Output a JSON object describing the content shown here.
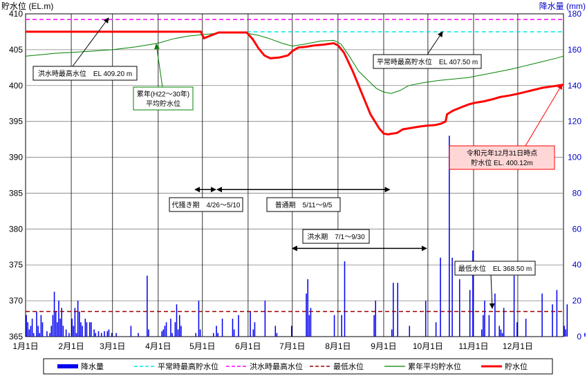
{
  "chart_data": {
    "type": "bar+line",
    "ylabel_left": "貯水位 (EL.m)",
    "ylabel_right": "降水量 (mm)",
    "y_left_range": [
      365,
      410
    ],
    "y_left_ticks": [
      365,
      370,
      375,
      380,
      385,
      390,
      395,
      400,
      405,
      410
    ],
    "y_right_range": [
      0,
      180
    ],
    "y_right_ticks": [
      0,
      20,
      40,
      60,
      80,
      100,
      120,
      140,
      160,
      180
    ],
    "x_range_days": [
      0,
      365
    ],
    "months": [
      "1月1日",
      "2月1日",
      "3月1日",
      "4月1日",
      "5月1日",
      "6月1日",
      "7月1日",
      "8月1日",
      "9月1日",
      "10月1日",
      "11月1日",
      "12月1日"
    ],
    "month_days": [
      0,
      31,
      59,
      90,
      120,
      151,
      181,
      212,
      243,
      273,
      304,
      334
    ],
    "colors": {
      "rain": "#0000ee",
      "normal_max": "#00e5e5",
      "flood_max": "#ff00ff",
      "min_level": "#990000",
      "avg_level": "#008000",
      "level": "#ff0000"
    },
    "reference_lines": {
      "flood_max": 409.2,
      "normal_max": 407.5,
      "min_level": 368.5
    },
    "series": [
      {
        "key": "level",
        "name": "貯水位",
        "points": [
          [
            0,
            407.5
          ],
          [
            119,
            407.5
          ],
          [
            120,
            407.0
          ],
          [
            121,
            406.6
          ],
          [
            126,
            407.0
          ],
          [
            131,
            407.4
          ],
          [
            150,
            407.4
          ],
          [
            154,
            406.5
          ],
          [
            158,
            405.2
          ],
          [
            162,
            404.2
          ],
          [
            166,
            403.8
          ],
          [
            172,
            403.9
          ],
          [
            178,
            404.2
          ],
          [
            181,
            404.8
          ],
          [
            185,
            405.3
          ],
          [
            190,
            405.4
          ],
          [
            196,
            405.6
          ],
          [
            202,
            405.7
          ],
          [
            209,
            405.9
          ],
          [
            212,
            405.6
          ],
          [
            216,
            404.6
          ],
          [
            222,
            402.0
          ],
          [
            228,
            399.0
          ],
          [
            234,
            396.0
          ],
          [
            240,
            394.0
          ],
          [
            243,
            393.3
          ],
          [
            246,
            393.2
          ],
          [
            252,
            393.4
          ],
          [
            256,
            393.9
          ],
          [
            262,
            394.1
          ],
          [
            268,
            394.3
          ],
          [
            272,
            394.4
          ],
          [
            278,
            394.5
          ],
          [
            282,
            394.7
          ],
          [
            285,
            395.0
          ],
          [
            286,
            396.0
          ],
          [
            290,
            396.5
          ],
          [
            296,
            397.0
          ],
          [
            301,
            397.4
          ],
          [
            305,
            397.6
          ],
          [
            311,
            397.8
          ],
          [
            317,
            398.1
          ],
          [
            322,
            398.4
          ],
          [
            328,
            398.6
          ],
          [
            335,
            398.9
          ],
          [
            343,
            399.3
          ],
          [
            351,
            399.7
          ],
          [
            358,
            399.9
          ],
          [
            365,
            400.12
          ]
        ]
      },
      {
        "key": "avg_level",
        "name": "累年平均貯水位",
        "points": [
          [
            0,
            404.1
          ],
          [
            10,
            404.3
          ],
          [
            20,
            404.5
          ],
          [
            30,
            404.6
          ],
          [
            45,
            404.8
          ],
          [
            59,
            405.0
          ],
          [
            75,
            405.4
          ],
          [
            90,
            405.9
          ],
          [
            100,
            406.5
          ],
          [
            110,
            406.9
          ],
          [
            120,
            407.1
          ],
          [
            131,
            407.3
          ],
          [
            150,
            407.3
          ],
          [
            158,
            407.0
          ],
          [
            166,
            406.5
          ],
          [
            174,
            405.9
          ],
          [
            181,
            405.5
          ],
          [
            190,
            405.8
          ],
          [
            200,
            406.2
          ],
          [
            209,
            406.3
          ],
          [
            214,
            405.8
          ],
          [
            220,
            404.0
          ],
          [
            226,
            402.0
          ],
          [
            232,
            400.8
          ],
          [
            238,
            399.6
          ],
          [
            243,
            399.1
          ],
          [
            248,
            398.9
          ],
          [
            254,
            399.3
          ],
          [
            260,
            400.0
          ],
          [
            270,
            400.4
          ],
          [
            280,
            400.7
          ],
          [
            290,
            400.9
          ],
          [
            300,
            401.1
          ],
          [
            310,
            401.5
          ],
          [
            320,
            401.9
          ],
          [
            330,
            402.3
          ],
          [
            340,
            402.8
          ],
          [
            350,
            403.3
          ],
          [
            360,
            403.8
          ],
          [
            365,
            404.1
          ]
        ]
      },
      {
        "key": "rain",
        "name": "降水量",
        "values": [
          12,
          8,
          4,
          6,
          10,
          2,
          0,
          14,
          6,
          2,
          12,
          8,
          0,
          0,
          3,
          0,
          2,
          6,
          12,
          25,
          14,
          8,
          20,
          10,
          16,
          6,
          0,
          4,
          0,
          2,
          0,
          10,
          6,
          16,
          2,
          20,
          14,
          8,
          6,
          0,
          10,
          8,
          0,
          8,
          8,
          0,
          4,
          2,
          0,
          3,
          0,
          2,
          0,
          3,
          0,
          3,
          4,
          0,
          2,
          0,
          0,
          2,
          0,
          0,
          0,
          0,
          0,
          0,
          0,
          0,
          0,
          6,
          0,
          0,
          0,
          0,
          2,
          0,
          0,
          0,
          0,
          0,
          34,
          4,
          0,
          0,
          0,
          0,
          0,
          0,
          0,
          0,
          3,
          4,
          6,
          8,
          0,
          0,
          10,
          2,
          0,
          8,
          18,
          4,
          12,
          6,
          0,
          0,
          0,
          0,
          0,
          0,
          0,
          0,
          0,
          2,
          0,
          20,
          4,
          0,
          0,
          0,
          0,
          0,
          0,
          0,
          0,
          2,
          0,
          6,
          2,
          0,
          0,
          10,
          0,
          0,
          0,
          0,
          0,
          0,
          10,
          4,
          0,
          0,
          12,
          0,
          0,
          0,
          0,
          0,
          0,
          0,
          14,
          0,
          4,
          8,
          0,
          0,
          0,
          0,
          0,
          0,
          20,
          0,
          0,
          0,
          0,
          0,
          0,
          6,
          2,
          0,
          0,
          0,
          0,
          0,
          0,
          0,
          0,
          0,
          6,
          0,
          0,
          0,
          0,
          0,
          0,
          0,
          0,
          0,
          24,
          32,
          12,
          16,
          0,
          0,
          0,
          0,
          0,
          0,
          0,
          0,
          0,
          0,
          0,
          0,
          0,
          0,
          0,
          12,
          0,
          0,
          0,
          0,
          12,
          0,
          0,
          0,
          0,
          0,
          0,
          0,
          0,
          0,
          0,
          0,
          0,
          0,
          0,
          0,
          0,
          0,
          0,
          0,
          0,
          0,
          12,
          20,
          0,
          0,
          0,
          0,
          0,
          0,
          0,
          0,
          0,
          0,
          4,
          30,
          0,
          0,
          0,
          0,
          0,
          0,
          0,
          0,
          0,
          0,
          6,
          0,
          0,
          0,
          0,
          0,
          0,
          0,
          0,
          0,
          0,
          0,
          0,
          0,
          0,
          0,
          0,
          0,
          8,
          0,
          0,
          0,
          0,
          0,
          0,
          0,
          0,
          0,
          0,
          0,
          0,
          0,
          0,
          0,
          0,
          0,
          0,
          0,
          0,
          0,
          0,
          0,
          0,
          6,
          0,
          0,
          0,
          0,
          0,
          4,
          12,
          18,
          0,
          0,
          0,
          0,
          0,
          0,
          0,
          0,
          0,
          6,
          4,
          2,
          0,
          0,
          0,
          0,
          0,
          0,
          0,
          0,
          0,
          8,
          0,
          0,
          0,
          0,
          0,
          0,
          0,
          0,
          0,
          0,
          0,
          0,
          0,
          0,
          0,
          0,
          0,
          0,
          0,
          0,
          0,
          0,
          0,
          0,
          0,
          0,
          0,
          0,
          0,
          0,
          0,
          6,
          4,
          18,
          0,
          0,
          0,
          0,
          0,
          0,
          0,
          0,
          0,
          0,
          0,
          2,
          0,
          0,
          0,
          0,
          0,
          0,
          0,
          0,
          0,
          0,
          0,
          0,
          0,
          0,
          0,
          0,
          0,
          0,
          0,
          0,
          0
        ]
      }
    ],
    "rain_spikes": [
      [
        216,
        42
      ],
      [
        252,
        30
      ],
      [
        271,
        20
      ],
      [
        281,
        44
      ],
      [
        287,
        112
      ],
      [
        289,
        44
      ],
      [
        294,
        32
      ],
      [
        301,
        26
      ],
      [
        303,
        48
      ],
      [
        311,
        20
      ],
      [
        314,
        12
      ],
      [
        318,
        24
      ],
      [
        324,
        16
      ],
      [
        331,
        34
      ],
      [
        339,
        10
      ],
      [
        350,
        24
      ],
      [
        357,
        18
      ],
      [
        360,
        26
      ]
    ],
    "annotations": {
      "flood_max": "洪水時最高水位　EL 409.20 m",
      "normal_max": "平常時最高貯水位　EL 407.50 m",
      "avg_line": [
        "累年(H22～30年)",
        "平均貯水位"
      ],
      "current": [
        "令和元年12月31日時点",
        "貯水位 EL. 400.12m"
      ],
      "min_level": "最低水位　EL 368.50 m",
      "period_irrigation": "代掻き期　4/26～5/10",
      "period_normal": "普通期　5/11～9/5",
      "period_flood": "洪水期　7/1～9/30"
    },
    "periods": [
      {
        "key": "irrigation",
        "start": 115,
        "end": 129,
        "level": 385.5
      },
      {
        "key": "normal",
        "start": 130,
        "end": 247,
        "level": 385.5
      },
      {
        "key": "flood",
        "start": 181,
        "end": 272,
        "level": 377.3
      }
    ],
    "legend": {
      "placement": "bottom",
      "items": [
        {
          "key": "rain",
          "label": "降水量"
        },
        {
          "key": "normal_max",
          "label": "平常時最高貯水位"
        },
        {
          "key": "flood_max",
          "label": "洪水時最高水位"
        },
        {
          "key": "min_level",
          "label": "最低水位"
        },
        {
          "key": "avg_level",
          "label": "累年平均貯水位"
        },
        {
          "key": "level",
          "label": "貯水位"
        }
      ]
    },
    "grid": true
  }
}
